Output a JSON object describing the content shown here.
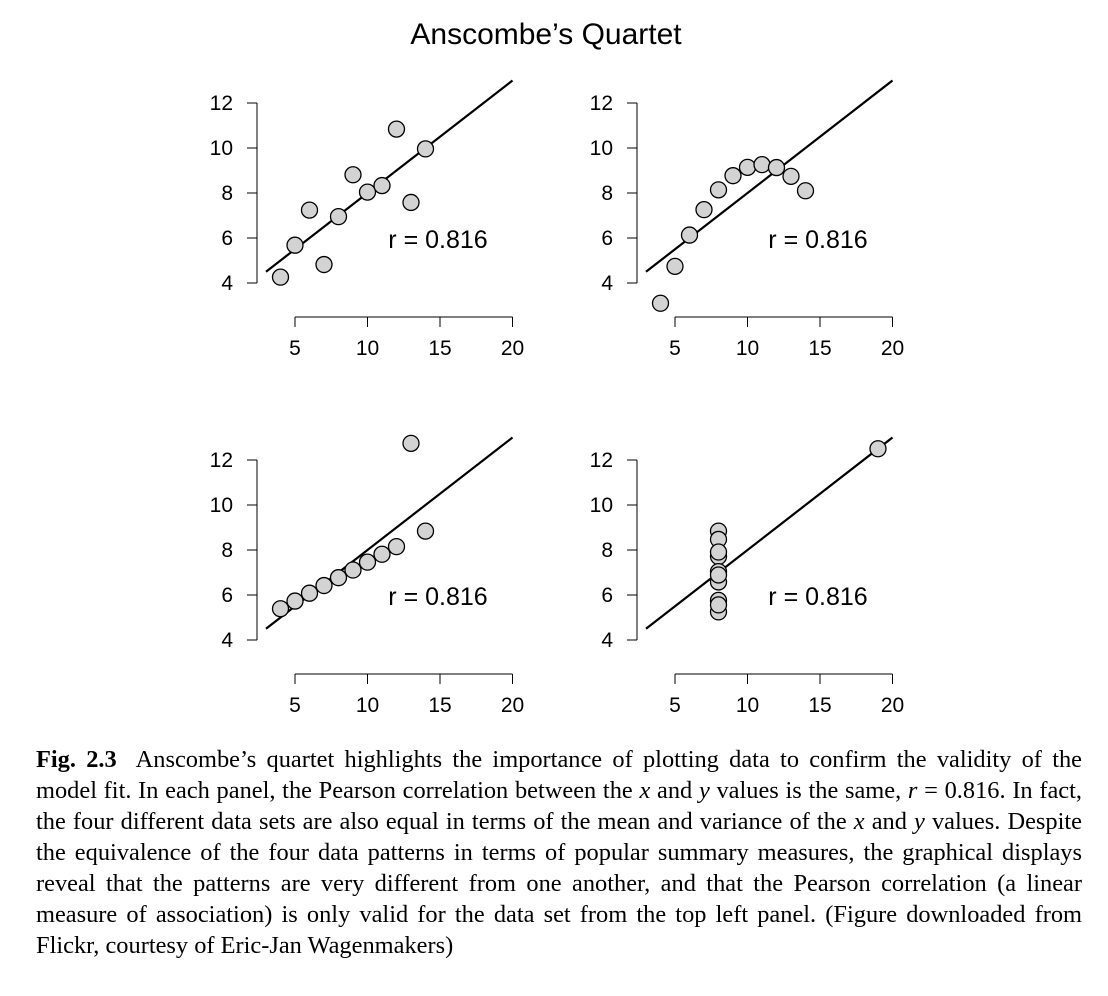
{
  "chart_data": {
    "title": "Anscombe’s Quartet",
    "panels": [
      {
        "type": "scatter",
        "x": [
          10,
          8,
          13,
          9,
          11,
          14,
          6,
          4,
          12,
          7,
          5
        ],
        "y": [
          8.04,
          6.95,
          7.58,
          8.81,
          8.33,
          9.96,
          7.24,
          4.26,
          10.84,
          4.82,
          5.68
        ],
        "fit": {
          "intercept": 3.0,
          "slope": 0.5
        },
        "annotation": "r = 0.816",
        "xticks": [
          "5",
          "10",
          "15",
          "20"
        ],
        "yticks": [
          "4",
          "6",
          "8",
          "10",
          "12"
        ],
        "xlim": [
          3,
          20
        ],
        "ylim": [
          4,
          12
        ]
      },
      {
        "type": "scatter",
        "x": [
          10,
          8,
          13,
          9,
          11,
          14,
          6,
          4,
          12,
          7,
          5
        ],
        "y": [
          9.14,
          8.14,
          8.74,
          8.77,
          9.26,
          8.1,
          6.13,
          3.1,
          9.13,
          7.26,
          4.74
        ],
        "fit": {
          "intercept": 3.0,
          "slope": 0.5
        },
        "annotation": "r = 0.816",
        "xticks": [
          "5",
          "10",
          "15",
          "20"
        ],
        "yticks": [
          "4",
          "6",
          "8",
          "10",
          "12"
        ],
        "xlim": [
          3,
          20
        ],
        "ylim": [
          4,
          12
        ]
      },
      {
        "type": "scatter",
        "x": [
          10,
          8,
          13,
          9,
          11,
          14,
          6,
          4,
          12,
          7,
          5
        ],
        "y": [
          7.46,
          6.77,
          12.74,
          7.11,
          7.81,
          8.84,
          6.08,
          5.39,
          8.15,
          6.42,
          5.73
        ],
        "fit": {
          "intercept": 3.0,
          "slope": 0.5
        },
        "annotation": "r = 0.816",
        "xticks": [
          "5",
          "10",
          "15",
          "20"
        ],
        "yticks": [
          "4",
          "6",
          "8",
          "10",
          "12"
        ],
        "xlim": [
          3,
          20
        ],
        "ylim": [
          4,
          12
        ]
      },
      {
        "type": "scatter",
        "x": [
          8,
          8,
          8,
          8,
          8,
          8,
          8,
          19,
          8,
          8,
          8
        ],
        "y": [
          6.58,
          5.76,
          7.71,
          8.84,
          8.47,
          7.04,
          5.25,
          12.5,
          5.56,
          7.91,
          6.89
        ],
        "fit": {
          "intercept": 3.0,
          "slope": 0.5
        },
        "annotation": "r = 0.816",
        "xticks": [
          "5",
          "10",
          "15",
          "20"
        ],
        "yticks": [
          "4",
          "6",
          "8",
          "10",
          "12"
        ],
        "xlim": [
          3,
          20
        ],
        "ylim": [
          4,
          12
        ]
      }
    ],
    "point_color": "#d3d3d3",
    "line_color": "#000000"
  },
  "caption": {
    "label": "Fig. 2.3",
    "part1": "Anscombe’s quartet highlights the importance of plotting data to confirm the validity of the model fit. In each panel, the Pearson correlation between the",
    "var_x": "x",
    "and_word": "and",
    "var_y": "y",
    "part2": "values is the same,",
    "r_var": "r",
    "r_eq": "= 0.816.",
    "part3": "In fact, the four different data sets are also equal in terms of the mean and variance of the",
    "var_x2": "x",
    "and_word2": "and",
    "var_y2": "y",
    "part4": "values. Despite the equivalence of the four data patterns in terms of popular summary measures, the graphical displays reveal that the patterns are very different from one another, and that the Pearson correlation (a linear measure of association) is only valid for the data set from the top left panel. (Figure downloaded from Flickr, courtesy of Eric-Jan Wagenmakers)"
  }
}
